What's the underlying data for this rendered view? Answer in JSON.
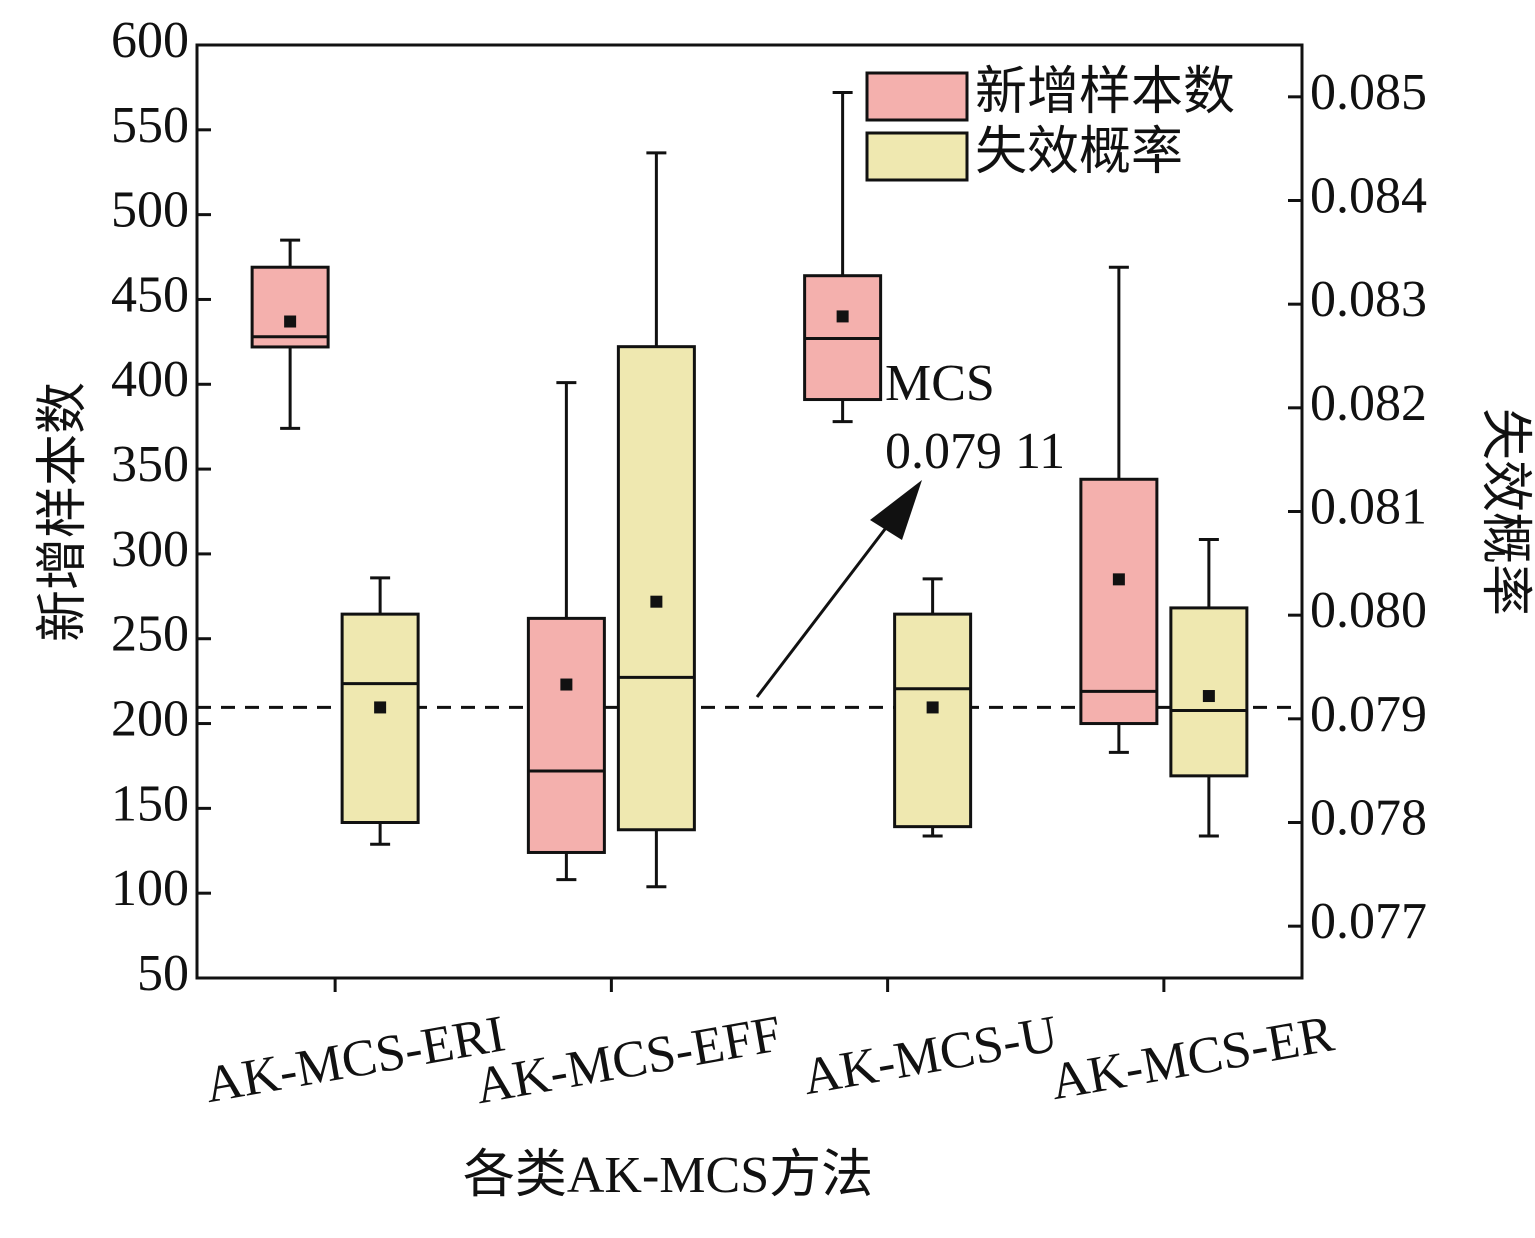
{
  "chart_data": {
    "type": "box",
    "x_label": "各类AK-MCS方法",
    "y_label": "新增样本数",
    "y2_label": "失效概率",
    "categories": [
      "AK-MCS-ERI",
      "AK-MCS-EFF",
      "AK-MCS-U",
      "AK-MCS-ER"
    ],
    "ylim": [
      50,
      600
    ],
    "yticks": [
      50,
      100,
      150,
      200,
      250,
      300,
      350,
      400,
      450,
      500,
      550,
      600
    ],
    "y2lim": [
      0.0765,
      0.0855
    ],
    "y2ticks": [
      0.077,
      0.078,
      0.079,
      {
        "value": 0.08,
        "label": "0.080"
      },
      0.081,
      0.082,
      0.083,
      0.084,
      0.085
    ],
    "legend": "upper right",
    "series": [
      {
        "name": "新增样本数",
        "color": "#f4b0ad",
        "axis": "y",
        "min": [
          374,
          108,
          378,
          183
        ],
        "q1": [
          422,
          124,
          391,
          200
        ],
        "median": [
          428,
          172,
          427,
          219
        ],
        "q3": [
          469,
          262,
          464,
          344
        ],
        "max": [
          485,
          401,
          572,
          469
        ],
        "mean": [
          437,
          223,
          440,
          285
        ]
      },
      {
        "name": "失效概率",
        "color": "#efe8b0",
        "axis": "y2",
        "min": [
          0.07779,
          0.07738,
          0.07787,
          0.07787
        ],
        "q1": [
          0.078,
          0.07793,
          0.07796,
          0.07845
        ],
        "median": [
          0.07934,
          0.0794,
          0.07929,
          0.07908
        ],
        "q3": [
          0.08001,
          0.08259,
          0.08001,
          0.08007
        ],
        "max": [
          0.08036,
          0.08446,
          0.08035,
          0.08073
        ],
        "mean": [
          0.07911,
          0.08013,
          0.07911,
          0.07922
        ]
      }
    ],
    "reference_value": 0.07911,
    "annotations": [
      "MCS",
      "0.079 11"
    ]
  }
}
